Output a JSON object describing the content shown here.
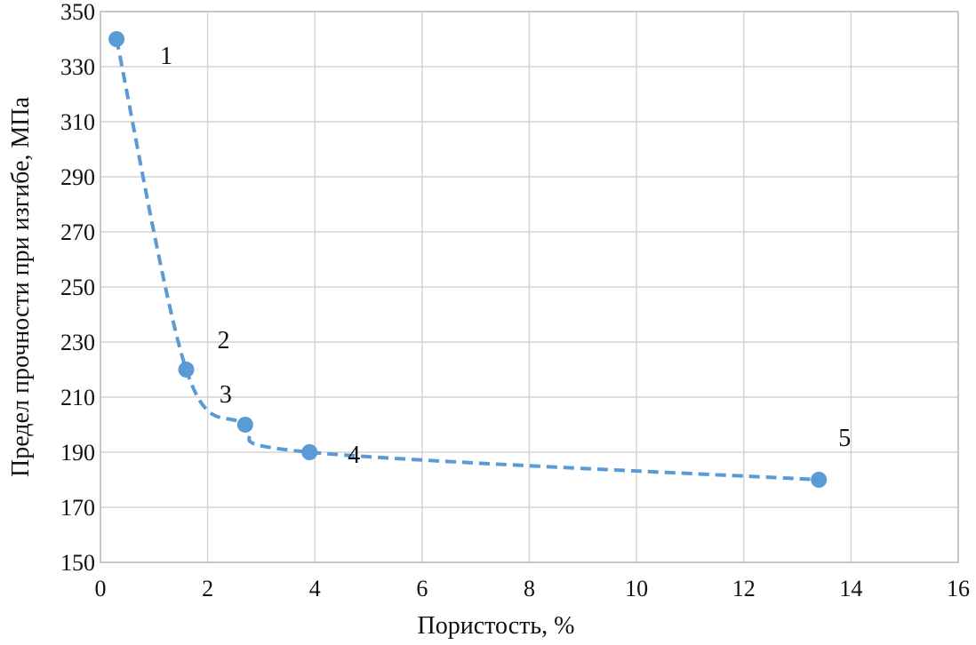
{
  "chart_data": {
    "type": "scatter",
    "title": "",
    "xlabel": "Пористость, %",
    "ylabel": "Предел прочности при изгибе, МПа",
    "xlim": [
      0,
      16
    ],
    "ylim": [
      150,
      350
    ],
    "xticks": [
      0,
      2,
      4,
      6,
      8,
      10,
      12,
      14,
      16
    ],
    "yticks": [
      150,
      170,
      190,
      210,
      230,
      250,
      270,
      290,
      310,
      330,
      350
    ],
    "grid": true,
    "line_style": "dashed-smooth",
    "color": "#5b9bd5",
    "series": [
      {
        "name": "Предел прочности при изгибе",
        "points": [
          {
            "label": "1",
            "x": 0.3,
            "y": 340
          },
          {
            "label": "2",
            "x": 1.6,
            "y": 220
          },
          {
            "label": "3",
            "x": 2.7,
            "y": 200
          },
          {
            "label": "4",
            "x": 3.9,
            "y": 190
          },
          {
            "label": "5",
            "x": 13.4,
            "y": 180
          }
        ]
      }
    ]
  }
}
